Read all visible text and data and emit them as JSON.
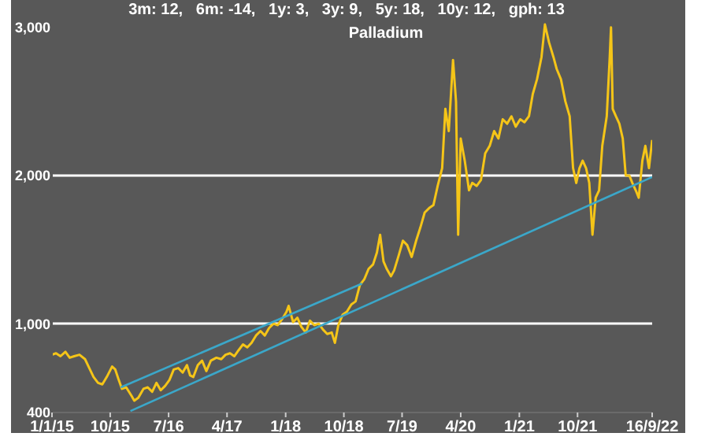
{
  "chart_data": {
    "type": "line",
    "title": "Palladium",
    "subtitle": "3m: 12,   6m: -14,   1y: 3,   3y: 9,   5y: 18,   10y: 12,   gph: 13",
    "xlim": [
      "2015-01-01",
      "2022-09-16"
    ],
    "xticks": [
      {
        "value": "2015-01-01",
        "label": "1/1/15"
      },
      {
        "value": "2015-10-01",
        "label": "10/15"
      },
      {
        "value": "2016-07-01",
        "label": "7/16"
      },
      {
        "value": "2017-04-01",
        "label": "4/17"
      },
      {
        "value": "2018-01-01",
        "label": "1/18"
      },
      {
        "value": "2018-10-01",
        "label": "10/18"
      },
      {
        "value": "2019-07-01",
        "label": "7/19"
      },
      {
        "value": "2020-04-01",
        "label": "4/20"
      },
      {
        "value": "2021-01-01",
        "label": "1/21"
      },
      {
        "value": "2021-10-01",
        "label": "10/21"
      },
      {
        "value": "2022-09-16",
        "label": "16/9/22"
      }
    ],
    "ylim": [
      400,
      3100
    ],
    "yticks": [
      400,
      {
        "value": 1000,
        "label": "1,000"
      },
      {
        "value": 2000,
        "label": "2,000"
      },
      {
        "value": 3000,
        "label": "3,000"
      }
    ],
    "ref_lines": [
      {
        "axis": "y",
        "value": 1000,
        "color": "#ffffff"
      },
      {
        "axis": "y",
        "value": 2000,
        "color": "#ffffff"
      }
    ],
    "series": [
      {
        "type": "line",
        "color": "#f5c518",
        "x": [
          "2015-01-01",
          "2015-01-20",
          "2015-02-10",
          "2015-03-05",
          "2015-03-25",
          "2015-04-15",
          "2015-05-10",
          "2015-06-05",
          "2015-06-25",
          "2015-07-15",
          "2015-08-05",
          "2015-08-25",
          "2015-09-15",
          "2015-10-10",
          "2015-10-25",
          "2015-11-10",
          "2015-11-25",
          "2015-12-15",
          "2016-01-10",
          "2016-01-22",
          "2016-02-10",
          "2016-03-05",
          "2016-03-25",
          "2016-04-15",
          "2016-05-05",
          "2016-05-25",
          "2016-06-15",
          "2016-07-05",
          "2016-07-25",
          "2016-08-15",
          "2016-09-05",
          "2016-09-25",
          "2016-10-10",
          "2016-10-25",
          "2016-11-15",
          "2016-12-05",
          "2016-12-25",
          "2017-01-15",
          "2017-02-10",
          "2017-03-05",
          "2017-03-25",
          "2017-04-15",
          "2017-05-05",
          "2017-05-25",
          "2017-06-15",
          "2017-07-05",
          "2017-07-25",
          "2017-08-15",
          "2017-09-05",
          "2017-09-25",
          "2017-10-15",
          "2017-11-05",
          "2017-11-25",
          "2017-12-15",
          "2018-01-05",
          "2018-01-15",
          "2018-02-05",
          "2018-02-25",
          "2018-03-15",
          "2018-04-05",
          "2018-04-25",
          "2018-05-15",
          "2018-06-05",
          "2018-06-25",
          "2018-07-15",
          "2018-08-05",
          "2018-08-20",
          "2018-09-05",
          "2018-09-25",
          "2018-10-15",
          "2018-11-05",
          "2018-11-25",
          "2018-12-15",
          "2019-01-05",
          "2019-01-25",
          "2019-02-15",
          "2019-03-05",
          "2019-03-20",
          "2019-04-05",
          "2019-04-20",
          "2019-05-10",
          "2019-05-25",
          "2019-06-15",
          "2019-07-05",
          "2019-07-25",
          "2019-08-15",
          "2019-09-05",
          "2019-09-25",
          "2019-10-15",
          "2019-11-05",
          "2019-11-25",
          "2019-12-15",
          "2020-01-05",
          "2020-01-20",
          "2020-02-05",
          "2020-02-25",
          "2020-03-10",
          "2020-03-20",
          "2020-04-01",
          "2020-04-20",
          "2020-05-10",
          "2020-05-25",
          "2020-06-15",
          "2020-07-05",
          "2020-07-25",
          "2020-08-15",
          "2020-09-05",
          "2020-09-25",
          "2020-10-15",
          "2020-11-05",
          "2020-11-25",
          "2020-12-15",
          "2021-01-05",
          "2021-01-25",
          "2021-02-15",
          "2021-03-05",
          "2021-03-25",
          "2021-04-15",
          "2021-05-01",
          "2021-05-20",
          "2021-06-10",
          "2021-06-25",
          "2021-07-15",
          "2021-08-05",
          "2021-08-25",
          "2021-09-10",
          "2021-09-25",
          "2021-10-10",
          "2021-10-25",
          "2021-11-10",
          "2021-11-25",
          "2021-12-10",
          "2021-12-25",
          "2022-01-10",
          "2022-01-25",
          "2022-02-15",
          "2022-03-01",
          "2022-03-07",
          "2022-03-15",
          "2022-03-30",
          "2022-04-15",
          "2022-05-01",
          "2022-05-15",
          "2022-06-01",
          "2022-06-15",
          "2022-07-01",
          "2022-07-15",
          "2022-08-01",
          "2022-08-15",
          "2022-09-01",
          "2022-09-16"
        ],
        "values": [
          790,
          800,
          780,
          810,
          770,
          780,
          790,
          760,
          700,
          640,
          600,
          590,
          640,
          710,
          690,
          620,
          560,
          570,
          510,
          480,
          500,
          560,
          570,
          540,
          600,
          550,
          580,
          620,
          690,
          700,
          670,
          720,
          650,
          640,
          720,
          750,
          680,
          750,
          770,
          760,
          790,
          800,
          780,
          820,
          860,
          840,
          870,
          920,
          950,
          920,
          970,
          1000,
          990,
          1030,
          1080,
          1120,
          1010,
          1040,
          980,
          940,
          1020,
          990,
          1000,
          960,
          930,
          940,
          870,
          990,
          1060,
          1080,
          1130,
          1150,
          1260,
          1300,
          1370,
          1400,
          1480,
          1600,
          1420,
          1370,
          1320,
          1360,
          1460,
          1560,
          1530,
          1450,
          1560,
          1650,
          1750,
          1780,
          1800,
          1930,
          2050,
          2450,
          2300,
          2780,
          2500,
          1600,
          2250,
          2100,
          1900,
          1950,
          1930,
          1970,
          2150,
          2200,
          2300,
          2250,
          2380,
          2350,
          2400,
          2330,
          2380,
          2360,
          2400,
          2550,
          2650,
          2800,
          3020,
          2900,
          2800,
          2720,
          2650,
          2500,
          2400,
          2050,
          1950,
          2050,
          2100,
          2050,
          1950,
          1600,
          1850,
          1900,
          2200,
          2400,
          2800,
          3000,
          2450,
          2400,
          2350,
          2250,
          2000,
          2000,
          1950,
          1900,
          1850,
          2100,
          2200,
          2050,
          2240
        ]
      },
      {
        "type": "line",
        "color": "#3ba7c9",
        "x": [
          "2015-11-20",
          "2018-12-25"
        ],
        "values": [
          570,
          1270
        ]
      },
      {
        "type": "line",
        "color": "#3ba7c9",
        "x": [
          "2016-01-04",
          "2022-09-16"
        ],
        "values": [
          410,
          1990
        ]
      }
    ]
  }
}
